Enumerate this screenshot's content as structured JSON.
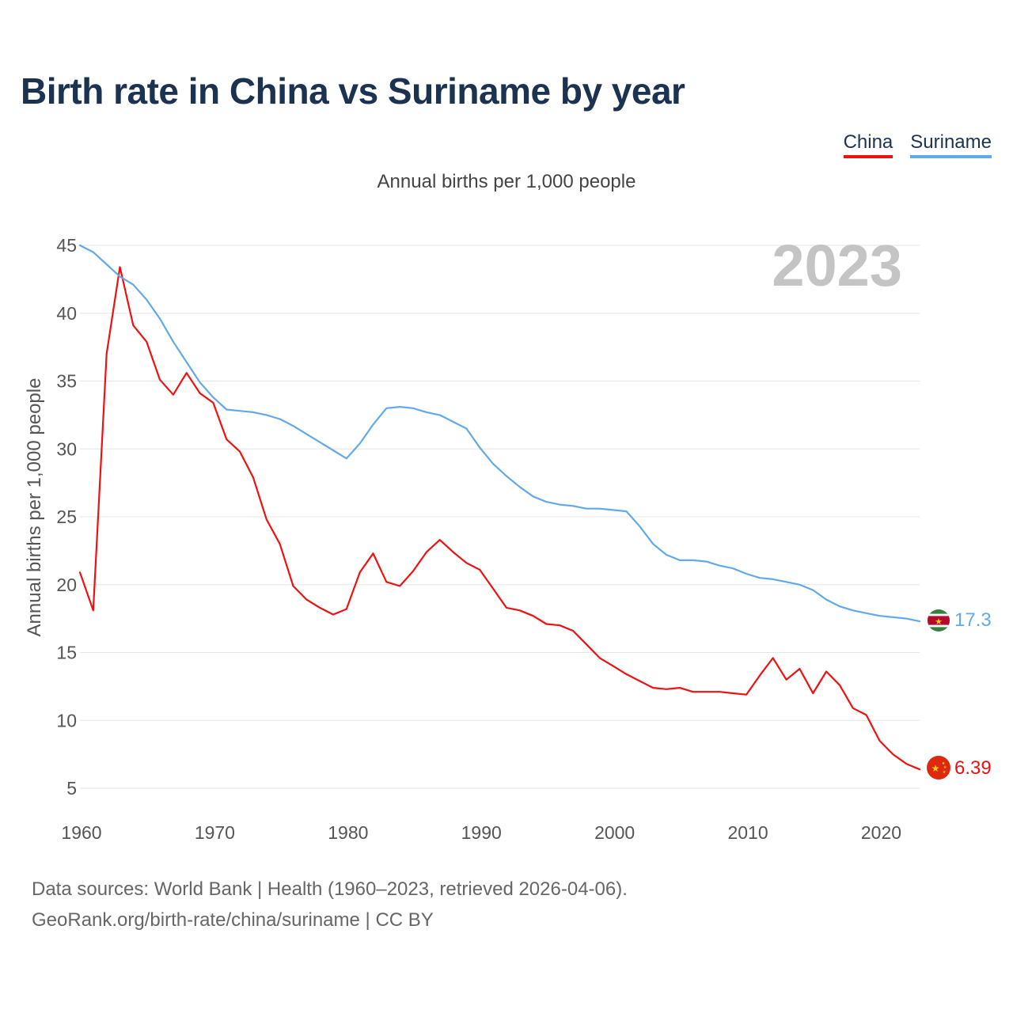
{
  "title": "Birth rate in China vs Suriname by year",
  "subtitle": "Annual births per 1,000 people",
  "year_badge": "2023",
  "legend": [
    {
      "name": "China",
      "color": "#ee1111"
    },
    {
      "name": "Suriname",
      "color": "#62a9ea"
    }
  ],
  "end_labels": {
    "china": "6.39",
    "suriname": "17.3"
  },
  "footer": {
    "line1": "Data sources: World Bank | Health (1960–2023, retrieved 2026-04-06).",
    "line2": "GeoRank.org/birth-rate/china/suriname | CC BY"
  },
  "chart_data": {
    "type": "line",
    "title": "Birth rate in China vs Suriname by year",
    "ylabel": "Annual births per 1,000 people",
    "xlabel": "",
    "xlim": [
      1960,
      2023
    ],
    "ylim": [
      5,
      45
    ],
    "xticks": [
      1960,
      1970,
      1980,
      1990,
      2000,
      2010,
      2020
    ],
    "yticks": [
      5,
      10,
      15,
      20,
      25,
      30,
      35,
      40,
      45
    ],
    "grid": true,
    "legend_position": "top-right",
    "x": [
      1960,
      1961,
      1962,
      1963,
      1964,
      1965,
      1966,
      1967,
      1968,
      1969,
      1970,
      1971,
      1972,
      1973,
      1974,
      1975,
      1976,
      1977,
      1978,
      1979,
      1980,
      1981,
      1982,
      1983,
      1984,
      1985,
      1986,
      1987,
      1988,
      1989,
      1990,
      1991,
      1992,
      1993,
      1994,
      1995,
      1996,
      1997,
      1998,
      1999,
      2000,
      2001,
      2002,
      2003,
      2004,
      2005,
      2006,
      2007,
      2008,
      2009,
      2010,
      2011,
      2012,
      2013,
      2014,
      2015,
      2016,
      2017,
      2018,
      2019,
      2020,
      2021,
      2022,
      2023
    ],
    "series": [
      {
        "name": "China",
        "color": "#ee1111",
        "values": [
          20.9,
          18.1,
          37.0,
          43.4,
          39.1,
          37.9,
          35.1,
          34.0,
          35.6,
          34.1,
          33.4,
          30.7,
          29.8,
          27.9,
          24.8,
          23.0,
          19.9,
          18.9,
          18.3,
          17.8,
          18.2,
          20.9,
          22.3,
          20.2,
          19.9,
          21.0,
          22.4,
          23.3,
          22.4,
          21.6,
          21.1,
          19.7,
          18.3,
          18.1,
          17.7,
          17.1,
          17.0,
          16.6,
          15.6,
          14.6,
          14.0,
          13.4,
          12.9,
          12.4,
          12.3,
          12.4,
          12.1,
          12.1,
          12.1,
          12.0,
          11.9,
          13.3,
          14.6,
          13.0,
          13.8,
          12.0,
          13.6,
          12.6,
          10.9,
          10.4,
          8.5,
          7.5,
          6.8,
          6.39
        ]
      },
      {
        "name": "Suriname",
        "color": "#62a9ea",
        "values": [
          45.0,
          44.5,
          43.6,
          42.7,
          42.1,
          41.0,
          39.6,
          37.9,
          36.4,
          34.9,
          33.8,
          32.9,
          32.8,
          32.7,
          32.5,
          32.2,
          31.7,
          31.1,
          30.5,
          29.9,
          29.3,
          30.4,
          31.8,
          33.0,
          33.1,
          33.0,
          32.7,
          32.5,
          32.0,
          31.5,
          30.1,
          28.9,
          28.0,
          27.2,
          26.5,
          26.1,
          25.9,
          25.8,
          25.6,
          25.6,
          25.5,
          25.4,
          24.3,
          23.0,
          22.2,
          21.8,
          21.8,
          21.7,
          21.4,
          21.2,
          20.8,
          20.5,
          20.4,
          20.2,
          20.0,
          19.6,
          18.9,
          18.4,
          18.1,
          17.9,
          17.7,
          17.6,
          17.5,
          17.3
        ]
      }
    ]
  }
}
